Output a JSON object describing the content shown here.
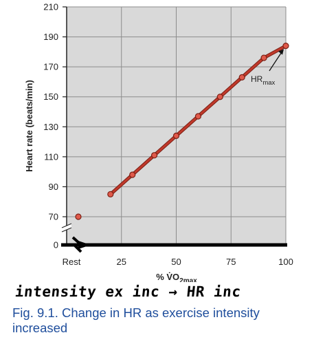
{
  "chart_data": {
    "type": "line",
    "xlabel": "% V̇O2max",
    "ylabel": "Heart rate (beats/min)",
    "x_tick_labels": [
      "Rest",
      "25",
      "50",
      "75",
      "100"
    ],
    "y_ticks": [
      0,
      70,
      90,
      110,
      130,
      150,
      170,
      190,
      210
    ],
    "ylim": [
      0,
      210
    ],
    "xlim": [
      0,
      100
    ],
    "axis_break": true,
    "grid": true,
    "rest_point": {
      "x": "Rest",
      "y": 70
    },
    "series": [
      {
        "x": [
          20,
          30,
          40,
          50,
          60,
          70,
          80,
          90,
          100
        ],
        "y": [
          85,
          98,
          111,
          124,
          137,
          150,
          163,
          176,
          184
        ]
      }
    ],
    "annotation": {
      "text": "HR",
      "subscript": "max",
      "points_to": {
        "x": 100,
        "y": 184
      }
    },
    "colors": {
      "line": "#c0392b",
      "marker": "#e05a4b",
      "plot_bg": "#d9d9d9",
      "grid": "#8c8c8c"
    }
  },
  "handwritten_note": "intensity ex inc → HR inc",
  "caption": "Fig. 9.1. Change in HR as exercise intensity increased"
}
